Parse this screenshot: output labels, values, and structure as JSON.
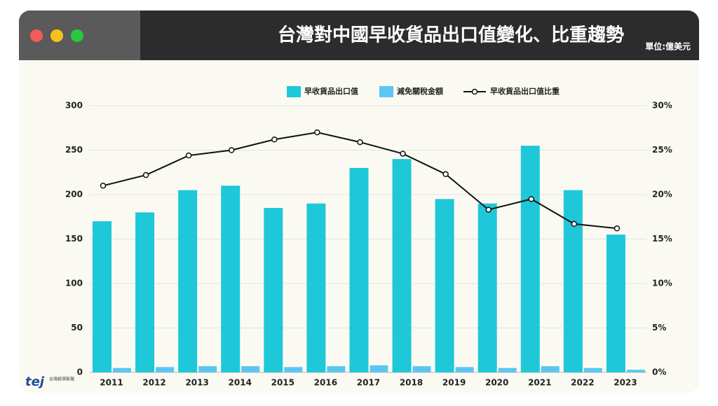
{
  "chart_data": {
    "type": "bar",
    "title": "台灣對中國早收貨品出口值變化、比重趨勢",
    "subtitle": "單位:億美元",
    "source": "台灣經濟新報",
    "categories": [
      "2011",
      "2012",
      "2013",
      "2014",
      "2015",
      "2016",
      "2017",
      "2018",
      "2019",
      "2020",
      "2021",
      "2022",
      "2023"
    ],
    "series": [
      {
        "name": "早收貨品出口值",
        "color": "#1ec8d8",
        "values": [
          170,
          180,
          205,
          210,
          185,
          190,
          230,
          240,
          195,
          190,
          255,
          205,
          155
        ]
      },
      {
        "name": "減免關稅金額",
        "color": "#5cc6f2",
        "values": [
          5,
          6,
          7,
          7,
          6,
          7,
          8,
          7,
          6,
          5,
          7,
          5,
          3
        ]
      },
      {
        "name": "早收貨品出口值比重",
        "color": "#111111",
        "type": "line",
        "axis": "y2",
        "values": [
          21,
          22.2,
          24.4,
          25,
          26.2,
          27,
          25.9,
          24.6,
          22.3,
          18.3,
          19.5,
          16.7,
          16.2
        ]
      }
    ],
    "ylim": [
      0,
      300
    ],
    "yticks": [
      0,
      50,
      100,
      150,
      200,
      250,
      300
    ],
    "y2lim": [
      0,
      30
    ],
    "y2ticks": [
      {
        "value": 0,
        "label": "0%"
      },
      {
        "value": 5,
        "label": "5%"
      },
      {
        "value": 10,
        "label": "10%"
      },
      {
        "value": 15,
        "label": "15%"
      },
      {
        "value": 20,
        "label": "20%"
      },
      {
        "value": 25,
        "label": "25%"
      },
      {
        "value": 30,
        "label": "30%"
      }
    ],
    "grid": true
  }
}
